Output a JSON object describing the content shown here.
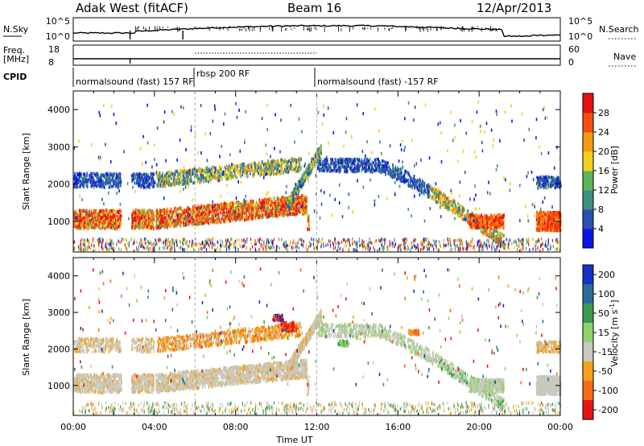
{
  "header": {
    "title": "Adak West (fitACF)",
    "beam": "Beam 16",
    "date": "12/Apr/2013"
  },
  "panels": {
    "nsky_label": "N.Sky",
    "nsky_ticks": [
      "10^5",
      "10^0"
    ],
    "nsearch_label": "N.Search",
    "nsearch_ticks": [
      "10^5",
      "10^0"
    ],
    "freq_label": "Freq.",
    "freq_unit": "[MHz]",
    "freq_ticks": [
      "18",
      "8"
    ],
    "nave_label": "Nave",
    "nave_ticks": [
      "60",
      "0"
    ],
    "cpid_label": "CPID",
    "programs": [
      "normalsound (fast) 157 RF",
      "rbsp 200 RF",
      "normalsound (fast) -157 RF"
    ]
  },
  "chart_data": [
    {
      "type": "heatmap",
      "name": "power",
      "ylabel": "Slant Range [km]",
      "xlabel": "",
      "xlim": [
        0,
        24
      ],
      "ylim": [
        180,
        4500
      ],
      "yticks": [
        1000,
        2000,
        3000,
        4000
      ],
      "colorbar": {
        "label": "Power [dB]",
        "ticks": [
          "4",
          "8",
          "12",
          "16",
          "20",
          "24",
          "28"
        ],
        "colors": [
          "#0a14e6",
          "#2a4fb0",
          "#3f8f80",
          "#5fb25a",
          "#f2d020",
          "#f59a10",
          "#f55010",
          "#e81010"
        ]
      }
    },
    {
      "type": "heatmap",
      "name": "velocity",
      "ylabel": "Slant Range [km]",
      "xlabel": "Time UT",
      "xlim": [
        0,
        24
      ],
      "ylim": [
        180,
        4500
      ],
      "yticks": [
        1000,
        2000,
        3000,
        4000
      ],
      "xticks": [
        "00:00",
        "04:00",
        "08:00",
        "12:00",
        "16:00",
        "20:00",
        "00:00"
      ],
      "colorbar": {
        "label": "Velocity [m s^-1]",
        "ticks": [
          "200",
          "100",
          "50",
          "15",
          "-15",
          "-50",
          "-100",
          "-200"
        ],
        "colors": [
          "#1530c8",
          "#2c6a9c",
          "#3d9a4c",
          "#8fd26a",
          "#c8c8be",
          "#f5a21a",
          "#f56a14",
          "#e81414"
        ]
      }
    }
  ]
}
